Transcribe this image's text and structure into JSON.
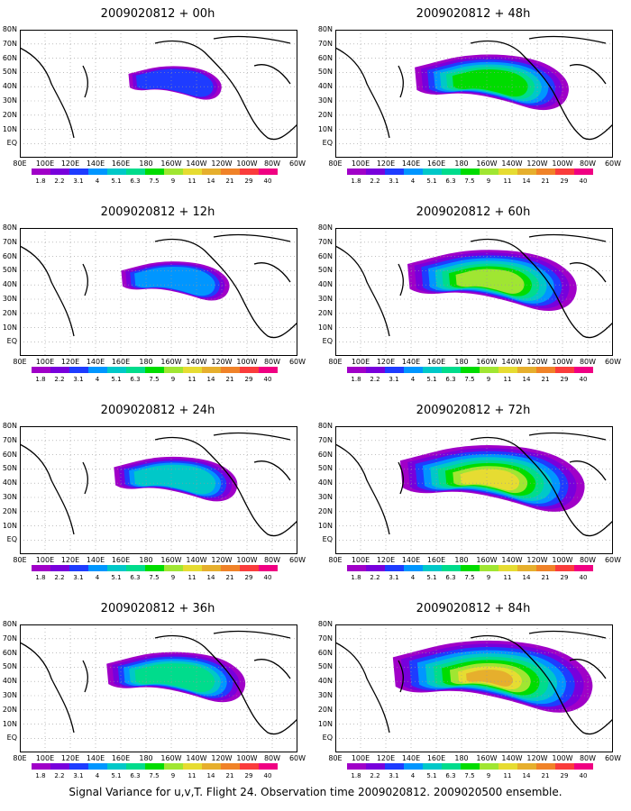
{
  "panels": [
    {
      "title": "2009020812 + 00h",
      "level": 0
    },
    {
      "title": "2009020812 + 48h",
      "level": 4
    },
    {
      "title": "2009020812 + 12h",
      "level": 1
    },
    {
      "title": "2009020812 + 60h",
      "level": 5
    },
    {
      "title": "2009020812 + 24h",
      "level": 2
    },
    {
      "title": "2009020812 + 72h",
      "level": 6
    },
    {
      "title": "2009020812 + 36h",
      "level": 3
    },
    {
      "title": "2009020812 + 84h",
      "level": 7
    }
  ],
  "lat_labels": [
    "80N",
    "70N",
    "60N",
    "50N",
    "40N",
    "30N",
    "20N",
    "10N",
    "EQ"
  ],
  "lon_labels": [
    "80E",
    "100E",
    "120E",
    "140E",
    "160E",
    "180",
    "160W",
    "140W",
    "120W",
    "100W",
    "80W",
    "60W"
  ],
  "colorbar": {
    "ticks": [
      "1.8",
      "2.2",
      "3.1",
      "4",
      "5.1",
      "6.3",
      "7.5",
      "9",
      "11",
      "14",
      "21",
      "29",
      "40"
    ],
    "colors": [
      "#a000c8",
      "#7800dc",
      "#1e3cff",
      "#0096ff",
      "#00c8c8",
      "#00dc8c",
      "#00dc00",
      "#a0e632",
      "#e6dc32",
      "#e6af2d",
      "#f08228",
      "#fa3c3c",
      "#f00082"
    ]
  },
  "caption": "Signal Variance for u,v,T. Flight 24. Observation time 2009020812. 2009020500 ensemble."
}
